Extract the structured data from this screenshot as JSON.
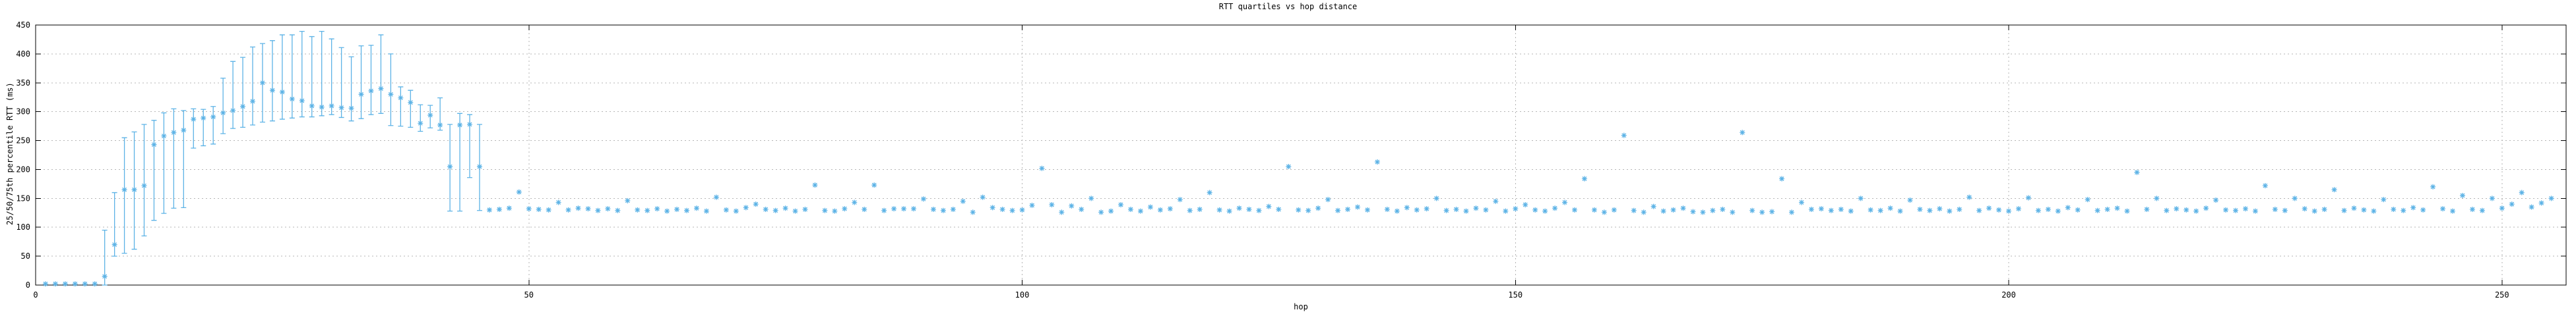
{
  "chart_data": {
    "type": "scatter",
    "title": "RTT quartiles vs hop distance",
    "xlabel": "hop",
    "ylabel": "25/50/75th percentile RTT (ms)",
    "xlim": [
      0,
      256.5
    ],
    "ylim": [
      0,
      450
    ],
    "xticks": [
      0,
      50,
      100,
      150,
      200,
      250
    ],
    "yticks": [
      0,
      50,
      100,
      150,
      200,
      250,
      300,
      350,
      400,
      450
    ],
    "grid": true,
    "legend_position": "none",
    "marker_style": "asterisk-with-error-bars",
    "marker_color": "#5db3e6",
    "grid_color": "#b5b5b5",
    "axis_color": "#000000",
    "background_color": "#ffffff",
    "points_format": "hop, median_rtt_ms, q25_rtt_ms, q75_rtt_ms (q25/q75 null when no whisker drawn)",
    "points": [
      [
        1,
        2,
        null,
        null
      ],
      [
        2,
        2,
        null,
        null
      ],
      [
        3,
        2,
        null,
        null
      ],
      [
        4,
        2,
        null,
        null
      ],
      [
        5,
        2,
        null,
        null
      ],
      [
        6,
        2,
        null,
        null
      ],
      [
        7,
        15,
        0,
        95
      ],
      [
        8,
        70,
        50,
        160
      ],
      [
        9,
        165,
        55,
        255
      ],
      [
        10,
        165,
        62,
        265
      ],
      [
        11,
        172,
        85,
        278
      ],
      [
        12,
        243,
        112,
        285
      ],
      [
        13,
        258,
        124,
        298
      ],
      [
        14,
        264,
        133,
        305
      ],
      [
        15,
        268,
        134,
        302
      ],
      [
        16,
        287,
        237,
        305
      ],
      [
        17,
        289,
        241,
        304
      ],
      [
        18,
        291,
        244,
        309
      ],
      [
        19,
        298,
        262,
        358
      ],
      [
        20,
        302,
        271,
        387
      ],
      [
        21,
        309,
        273,
        394
      ],
      [
        22,
        318,
        277,
        412
      ],
      [
        23,
        350,
        282,
        418
      ],
      [
        24,
        337,
        284,
        423
      ],
      [
        25,
        334,
        287,
        433
      ],
      [
        26,
        322,
        289,
        433
      ],
      [
        27,
        319,
        291,
        439
      ],
      [
        28,
        310,
        291,
        430
      ],
      [
        29,
        308,
        293,
        439
      ],
      [
        30,
        310,
        295,
        426
      ],
      [
        31,
        307,
        290,
        411
      ],
      [
        32,
        306,
        284,
        395
      ],
      [
        33,
        330,
        288,
        414
      ],
      [
        34,
        336,
        295,
        415
      ],
      [
        35,
        340,
        297,
        433
      ],
      [
        36,
        330,
        276,
        400
      ],
      [
        37,
        324,
        275,
        343
      ],
      [
        38,
        316,
        273,
        337
      ],
      [
        39,
        280,
        266,
        312
      ],
      [
        40,
        294,
        272,
        311
      ],
      [
        41,
        277,
        268,
        324
      ],
      [
        42,
        205,
        128,
        278
      ],
      [
        43,
        277,
        128,
        297
      ],
      [
        44,
        278,
        186,
        295
      ],
      [
        45,
        205,
        129,
        278
      ],
      [
        46,
        130,
        null,
        null
      ],
      [
        47,
        131,
        null,
        null
      ],
      [
        48,
        133,
        null,
        null
      ],
      [
        49,
        161,
        null,
        null
      ],
      [
        50,
        132,
        null,
        null
      ],
      [
        51,
        131,
        null,
        null
      ],
      [
        52,
        130,
        null,
        null
      ],
      [
        53,
        143,
        null,
        null
      ],
      [
        54,
        130,
        null,
        null
      ],
      [
        55,
        133,
        null,
        null
      ],
      [
        56,
        132,
        null,
        null
      ],
      [
        57,
        129,
        null,
        null
      ],
      [
        58,
        132,
        null,
        null
      ],
      [
        59,
        129,
        null,
        null
      ],
      [
        60,
        146,
        null,
        null
      ],
      [
        61,
        130,
        null,
        null
      ],
      [
        62,
        129,
        null,
        null
      ],
      [
        63,
        132,
        null,
        null
      ],
      [
        64,
        128,
        null,
        null
      ],
      [
        65,
        131,
        null,
        null
      ],
      [
        66,
        129,
        null,
        null
      ],
      [
        67,
        133,
        null,
        null
      ],
      [
        68,
        128,
        null,
        null
      ],
      [
        69,
        152,
        null,
        null
      ],
      [
        70,
        130,
        null,
        null
      ],
      [
        71,
        128,
        null,
        null
      ],
      [
        72,
        134,
        null,
        null
      ],
      [
        73,
        140,
        null,
        null
      ],
      [
        74,
        131,
        null,
        null
      ],
      [
        75,
        129,
        null,
        null
      ],
      [
        76,
        133,
        null,
        null
      ],
      [
        77,
        128,
        null,
        null
      ],
      [
        78,
        131,
        null,
        null
      ],
      [
        79,
        173,
        null,
        null
      ],
      [
        80,
        129,
        null,
        null
      ],
      [
        81,
        128,
        null,
        null
      ],
      [
        82,
        132,
        null,
        null
      ],
      [
        83,
        143,
        null,
        null
      ],
      [
        84,
        131,
        null,
        null
      ],
      [
        85,
        173,
        null,
        null
      ],
      [
        86,
        129,
        null,
        null
      ],
      [
        87,
        132,
        null,
        null
      ],
      [
        88,
        132,
        null,
        null
      ],
      [
        89,
        132,
        null,
        null
      ],
      [
        90,
        149,
        null,
        null
      ],
      [
        91,
        131,
        null,
        null
      ],
      [
        92,
        129,
        null,
        null
      ],
      [
        93,
        131,
        null,
        null
      ],
      [
        94,
        145,
        null,
        null
      ],
      [
        95,
        126,
        null,
        null
      ],
      [
        96,
        152,
        null,
        null
      ],
      [
        97,
        134,
        null,
        null
      ],
      [
        98,
        131,
        null,
        null
      ],
      [
        99,
        129,
        null,
        null
      ],
      [
        100,
        130,
        null,
        null
      ],
      [
        101,
        138,
        null,
        null
      ],
      [
        102,
        202,
        null,
        null
      ],
      [
        103,
        139,
        null,
        null
      ],
      [
        104,
        126,
        null,
        null
      ],
      [
        105,
        137,
        null,
        null
      ],
      [
        106,
        131,
        null,
        null
      ],
      [
        107,
        150,
        null,
        null
      ],
      [
        108,
        126,
        null,
        null
      ],
      [
        109,
        128,
        null,
        null
      ],
      [
        110,
        139,
        null,
        null
      ],
      [
        111,
        131,
        null,
        null
      ],
      [
        112,
        128,
        null,
        null
      ],
      [
        113,
        135,
        null,
        null
      ],
      [
        114,
        130,
        null,
        null
      ],
      [
        115,
        132,
        null,
        null
      ],
      [
        116,
        148,
        null,
        null
      ],
      [
        117,
        129,
        null,
        null
      ],
      [
        118,
        131,
        null,
        null
      ],
      [
        119,
        160,
        null,
        null
      ],
      [
        120,
        130,
        null,
        null
      ],
      [
        121,
        128,
        null,
        null
      ],
      [
        122,
        133,
        null,
        null
      ],
      [
        123,
        131,
        null,
        null
      ],
      [
        124,
        129,
        null,
        null
      ],
      [
        125,
        136,
        null,
        null
      ],
      [
        126,
        131,
        null,
        null
      ],
      [
        127,
        205,
        null,
        null
      ],
      [
        128,
        130,
        null,
        null
      ],
      [
        129,
        129,
        null,
        null
      ],
      [
        130,
        133,
        null,
        null
      ],
      [
        131,
        148,
        null,
        null
      ],
      [
        132,
        129,
        null,
        null
      ],
      [
        133,
        131,
        null,
        null
      ],
      [
        134,
        135,
        null,
        null
      ],
      [
        135,
        130,
        null,
        null
      ],
      [
        136,
        213,
        null,
        null
      ],
      [
        137,
        131,
        null,
        null
      ],
      [
        138,
        128,
        null,
        null
      ],
      [
        139,
        134,
        null,
        null
      ],
      [
        140,
        130,
        null,
        null
      ],
      [
        141,
        132,
        null,
        null
      ],
      [
        142,
        150,
        null,
        null
      ],
      [
        143,
        129,
        null,
        null
      ],
      [
        144,
        131,
        null,
        null
      ],
      [
        145,
        128,
        null,
        null
      ],
      [
        146,
        133,
        null,
        null
      ],
      [
        147,
        130,
        null,
        null
      ],
      [
        148,
        145,
        null,
        null
      ],
      [
        149,
        128,
        null,
        null
      ],
      [
        150,
        132,
        null,
        null
      ],
      [
        151,
        139,
        null,
        null
      ],
      [
        152,
        130,
        null,
        null
      ],
      [
        153,
        128,
        null,
        null
      ],
      [
        154,
        133,
        null,
        null
      ],
      [
        155,
        143,
        null,
        null
      ],
      [
        156,
        130,
        null,
        null
      ],
      [
        157,
        184,
        null,
        null
      ],
      [
        158,
        130,
        null,
        null
      ],
      [
        159,
        126,
        null,
        null
      ],
      [
        160,
        130,
        null,
        null
      ],
      [
        161,
        259,
        null,
        null
      ],
      [
        162,
        129,
        null,
        null
      ],
      [
        163,
        126,
        null,
        null
      ],
      [
        164,
        136,
        null,
        null
      ],
      [
        165,
        128,
        null,
        null
      ],
      [
        166,
        130,
        null,
        null
      ],
      [
        167,
        133,
        null,
        null
      ],
      [
        168,
        127,
        null,
        null
      ],
      [
        169,
        126,
        null,
        null
      ],
      [
        170,
        129,
        null,
        null
      ],
      [
        171,
        131,
        null,
        null
      ],
      [
        172,
        126,
        null,
        null
      ],
      [
        173,
        264,
        null,
        null
      ],
      [
        174,
        129,
        null,
        null
      ],
      [
        175,
        126,
        null,
        null
      ],
      [
        176,
        127,
        null,
        null
      ],
      [
        177,
        184,
        null,
        null
      ],
      [
        178,
        126,
        null,
        null
      ],
      [
        179,
        143,
        null,
        null
      ],
      [
        180,
        131,
        null,
        null
      ],
      [
        181,
        132,
        null,
        null
      ],
      [
        182,
        129,
        null,
        null
      ],
      [
        183,
        131,
        null,
        null
      ],
      [
        184,
        128,
        null,
        null
      ],
      [
        185,
        150,
        null,
        null
      ],
      [
        186,
        130,
        null,
        null
      ],
      [
        187,
        129,
        null,
        null
      ],
      [
        188,
        133,
        null,
        null
      ],
      [
        189,
        128,
        null,
        null
      ],
      [
        190,
        147,
        null,
        null
      ],
      [
        191,
        131,
        null,
        null
      ],
      [
        192,
        129,
        null,
        null
      ],
      [
        193,
        132,
        null,
        null
      ],
      [
        194,
        128,
        null,
        null
      ],
      [
        195,
        131,
        null,
        null
      ],
      [
        196,
        152,
        null,
        null
      ],
      [
        197,
        129,
        null,
        null
      ],
      [
        198,
        133,
        null,
        null
      ],
      [
        199,
        130,
        null,
        null
      ],
      [
        200,
        128,
        null,
        null
      ],
      [
        201,
        132,
        null,
        null
      ],
      [
        202,
        151,
        null,
        null
      ],
      [
        203,
        129,
        null,
        null
      ],
      [
        204,
        131,
        null,
        null
      ],
      [
        205,
        128,
        null,
        null
      ],
      [
        206,
        134,
        null,
        null
      ],
      [
        207,
        130,
        null,
        null
      ],
      [
        208,
        148,
        null,
        null
      ],
      [
        209,
        129,
        null,
        null
      ],
      [
        210,
        131,
        null,
        null
      ],
      [
        211,
        133,
        null,
        null
      ],
      [
        212,
        128,
        null,
        null
      ],
      [
        213,
        195,
        null,
        null
      ],
      [
        214,
        131,
        null,
        null
      ],
      [
        215,
        150,
        null,
        null
      ],
      [
        216,
        129,
        null,
        null
      ],
      [
        217,
        132,
        null,
        null
      ],
      [
        218,
        130,
        null,
        null
      ],
      [
        219,
        128,
        null,
        null
      ],
      [
        220,
        133,
        null,
        null
      ],
      [
        221,
        147,
        null,
        null
      ],
      [
        222,
        130,
        null,
        null
      ],
      [
        223,
        129,
        null,
        null
      ],
      [
        224,
        132,
        null,
        null
      ],
      [
        225,
        128,
        null,
        null
      ],
      [
        226,
        172,
        null,
        null
      ],
      [
        227,
        131,
        null,
        null
      ],
      [
        228,
        129,
        null,
        null
      ],
      [
        229,
        150,
        null,
        null
      ],
      [
        230,
        132,
        null,
        null
      ],
      [
        231,
        128,
        null,
        null
      ],
      [
        232,
        131,
        null,
        null
      ],
      [
        233,
        165,
        null,
        null
      ],
      [
        234,
        129,
        null,
        null
      ],
      [
        235,
        133,
        null,
        null
      ],
      [
        236,
        130,
        null,
        null
      ],
      [
        237,
        128,
        null,
        null
      ],
      [
        238,
        148,
        null,
        null
      ],
      [
        239,
        131,
        null,
        null
      ],
      [
        240,
        129,
        null,
        null
      ],
      [
        241,
        134,
        null,
        null
      ],
      [
        242,
        130,
        null,
        null
      ],
      [
        243,
        170,
        null,
        null
      ],
      [
        244,
        132,
        null,
        null
      ],
      [
        245,
        128,
        null,
        null
      ],
      [
        246,
        155,
        null,
        null
      ],
      [
        247,
        131,
        null,
        null
      ],
      [
        248,
        129,
        null,
        null
      ],
      [
        249,
        150,
        null,
        null
      ],
      [
        250,
        133,
        null,
        null
      ],
      [
        251,
        140,
        null,
        null
      ],
      [
        252,
        160,
        null,
        null
      ],
      [
        253,
        135,
        null,
        null
      ],
      [
        254,
        142,
        null,
        null
      ],
      [
        255,
        150,
        null,
        null
      ]
    ]
  }
}
